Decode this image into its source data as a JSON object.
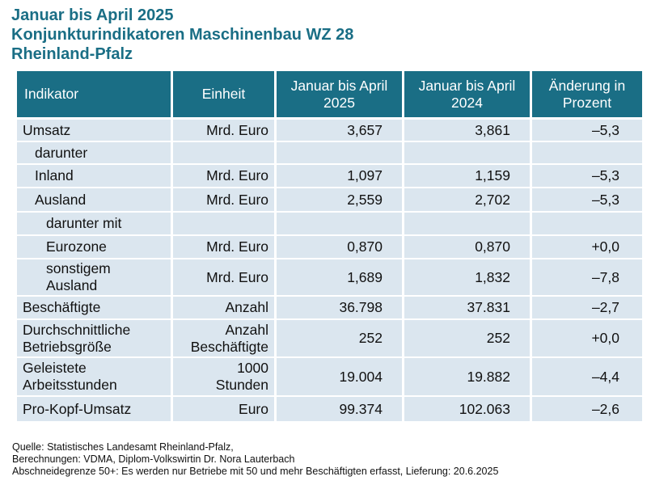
{
  "title": {
    "line1": "Januar bis April 2025",
    "line2": "Konjunkturindikatoren Maschinenbau WZ 28",
    "line3": "Rheinland-Pfalz"
  },
  "table": {
    "headers": {
      "indikator": "Indikator",
      "einheit": "Einheit",
      "col2025": [
        "Januar bis April",
        "2025"
      ],
      "col2024": [
        "Januar bis April",
        "2024"
      ],
      "change": [
        "Änderung in",
        "Prozent"
      ]
    },
    "rows": [
      {
        "indikator": [
          "Umsatz"
        ],
        "einheit": [
          "Mrd. Euro"
        ],
        "v2025": "3,657",
        "v2024": "3,861",
        "change": "–5,3"
      },
      {
        "indikator": [
          "darunter"
        ],
        "einheit": [],
        "v2025": "",
        "v2024": "",
        "change": ""
      },
      {
        "indikator": [
          "Inland"
        ],
        "einheit": [
          "Mrd. Euro"
        ],
        "v2025": "1,097",
        "v2024": "1,159",
        "change": "–5,3"
      },
      {
        "indikator": [
          "Ausland"
        ],
        "einheit": [
          "Mrd. Euro"
        ],
        "v2025": "2,559",
        "v2024": "2,702",
        "change": "–5,3"
      },
      {
        "indikator": [
          "darunter mit"
        ],
        "einheit": [],
        "v2025": "",
        "v2024": "",
        "change": ""
      },
      {
        "indikator": [
          "Eurozone"
        ],
        "einheit": [
          "Mrd. Euro"
        ],
        "v2025": "0,870",
        "v2024": "0,870",
        "change": "+0,0"
      },
      {
        "indikator": [
          "sonstigem",
          "Ausland"
        ],
        "einheit": [
          "Mrd. Euro"
        ],
        "v2025": "1,689",
        "v2024": "1,832",
        "change": "–7,8"
      },
      {
        "indikator": [
          "Beschäftigte"
        ],
        "einheit": [
          "Anzahl"
        ],
        "v2025": "36.798",
        "v2024": "37.831",
        "change": "–2,7"
      },
      {
        "indikator": [
          "Durchschnittliche",
          "Betriebsgröße"
        ],
        "einheit": [
          "Anzahl",
          "Beschäftigte"
        ],
        "v2025": "252",
        "v2024": "252",
        "change": "+0,0"
      },
      {
        "indikator": [
          "Geleistete",
          "Arbeitsstunden"
        ],
        "einheit": [
          "1000",
          "Stunden"
        ],
        "v2025": "19.004",
        "v2024": "19.882",
        "change": "–4,4"
      },
      {
        "indikator": [
          "Pro-Kopf-Umsatz"
        ],
        "einheit": [
          "Euro"
        ],
        "v2025": "99.374",
        "v2024": "102.063",
        "change": "–2,6"
      }
    ]
  },
  "footer": {
    "line1": "Quelle: Statistisches Landesamt Rheinland-Pfalz,",
    "line2": "Berechnungen: VDMA, Diplom-Volkswirtin Dr. Nora Lauterbach",
    "line3": "Abschneidegrenze 50+: Es werden nur Betriebe mit 50 und mehr Beschäftigten erfasst, Lieferung: 20.6.2025"
  }
}
